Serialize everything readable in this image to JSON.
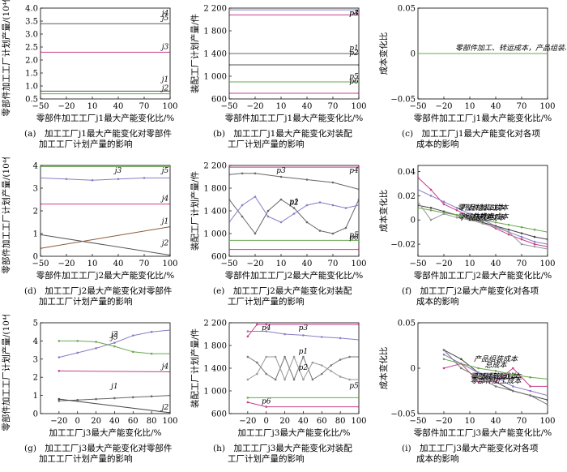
{
  "panels": [
    {
      "id": "a",
      "type": "line",
      "xlabel": "零部件加工工厂j1最大产能变化比/%",
      "ylabel": "零部件加工工厂计划产量/(10⁴件)",
      "x_ticks": [
        -50,
        -20,
        10,
        40,
        70,
        100
      ],
      "y_ticks": [
        "0.5",
        "1.0",
        "1.5",
        "2.0",
        "2.5",
        "3.0",
        "3.5",
        "4.0"
      ],
      "xlim": [
        -50,
        100
      ],
      "ylim": [
        0.5,
        4.0
      ],
      "caption": [
        "(a)　加工工厂j1最大产能变化对零部件",
        "加工工厂计划产量的影响"
      ],
      "series": [
        {
          "name": "j5",
          "color": "#8a7cc4",
          "x": [
            -50,
            100
          ],
          "y": [
            3.4,
            3.4
          ]
        },
        {
          "name": "j4",
          "color": "#777777",
          "x": [
            -50,
            100
          ],
          "y": [
            3.4,
            3.4
          ]
        },
        {
          "name": "j3",
          "color": "#c8408a",
          "x": [
            -50,
            100
          ],
          "y": [
            2.3,
            2.3
          ]
        },
        {
          "name": "j1",
          "color": "#555555",
          "x": [
            -50,
            100
          ],
          "y": [
            0.8,
            0.8
          ]
        },
        {
          "name": "j2",
          "color": "#6aa84f",
          "x": [
            -50,
            100
          ],
          "y": [
            0.7,
            0.7
          ]
        }
      ]
    },
    {
      "id": "b",
      "type": "line",
      "xlabel": "零部件加工工厂j1最大产能变化比/%",
      "ylabel": "装配工厂计划产量/件",
      "x_ticks": [
        -50,
        -20,
        10,
        40,
        70,
        100
      ],
      "y_ticks": [
        "600",
        "1 000",
        "1 400",
        "1 800",
        "2 200"
      ],
      "xlim": [
        -50,
        100
      ],
      "ylim": [
        600,
        2200
      ],
      "caption": [
        "(b)　加工工厂j1最大产能变化对装配",
        "工厂计划产量的影响"
      ],
      "series": [
        {
          "name": "p4",
          "color": "#8a7cc4",
          "x": [
            -50,
            100
          ],
          "y": [
            2170,
            2170
          ]
        },
        {
          "name": "p3",
          "color": "#c8408a",
          "x": [
            -50,
            100
          ],
          "y": [
            2080,
            2080
          ]
        },
        {
          "name": "p1",
          "color": "#666666",
          "x": [
            -50,
            100
          ],
          "y": [
            1400,
            1400
          ]
        },
        {
          "name": "p2",
          "color": "#555555",
          "x": [
            -50,
            100
          ],
          "y": [
            1200,
            1200
          ]
        },
        {
          "name": "p5",
          "color": "#6aa84f",
          "x": [
            -50,
            100
          ],
          "y": [
            900,
            900
          ]
        },
        {
          "name": "p6",
          "color": "#c8408a",
          "x": [
            -50,
            100
          ],
          "y": [
            700,
            700
          ]
        }
      ]
    },
    {
      "id": "c",
      "type": "line",
      "xlabel": "零部件加工工厂j1最大产能变化比/%",
      "ylabel": "成本变化比",
      "x_ticks": [
        -50,
        -20,
        10,
        40,
        70,
        100
      ],
      "y_ticks": [
        "−0.05",
        "0",
        "0.05"
      ],
      "xlim": [
        -50,
        100
      ],
      "ylim": [
        -0.05,
        0.05
      ],
      "caption": [
        "(c)　加工工厂j1最大产能变化对各项",
        "成本的影响"
      ],
      "series": [
        {
          "name": "零部件加工、转运成本，产品组装、配送成本、总成本",
          "color": "#6aa84f",
          "x": [
            -50,
            100
          ],
          "y": [
            0,
            0
          ]
        }
      ]
    },
    {
      "id": "d",
      "type": "line",
      "xlabel": "零部件加工工厂j2最大产能变化比/%",
      "ylabel": "零部件加工工厂计划产量/(10⁴件)",
      "x_ticks": [
        -50,
        -20,
        10,
        40,
        70,
        100
      ],
      "y_ticks": [
        "0",
        "1",
        "2",
        "3",
        "4"
      ],
      "xlim": [
        -50,
        100
      ],
      "ylim": [
        0,
        4
      ],
      "caption": [
        "(d)　加工工厂j2最大产能变化对零部件",
        "加工工厂计划产量的影响"
      ],
      "series": [
        {
          "name": "j5",
          "color": "#6aa84f",
          "x": [
            -50,
            100
          ],
          "y": [
            3.95,
            3.95
          ]
        },
        {
          "name": "j3",
          "color": "#8a7cc4",
          "x": [
            -50,
            -20,
            10,
            40,
            70,
            100
          ],
          "y": [
            3.45,
            3.4,
            3.35,
            3.4,
            3.45,
            3.45
          ]
        },
        {
          "name": "j4",
          "color": "#c8408a",
          "x": [
            -50,
            100
          ],
          "y": [
            2.3,
            2.3
          ]
        },
        {
          "name": "j2",
          "color": "#555555",
          "x": [
            -50,
            100
          ],
          "y": [
            0.95,
            0.05
          ]
        },
        {
          "name": "j1",
          "color": "#8a5a3a",
          "x": [
            -50,
            100
          ],
          "y": [
            0.35,
            1.3
          ]
        }
      ]
    },
    {
      "id": "e",
      "type": "line",
      "xlabel": "零部件加工工厂j2最大产能变化比/%",
      "ylabel": "装配工厂计划产量/件",
      "x_ticks": [
        -50,
        -20,
        10,
        40,
        70,
        100
      ],
      "y_ticks": [
        "600",
        "1 000",
        "1 400",
        "1 800",
        "2 200"
      ],
      "xlim": [
        -50,
        100
      ],
      "ylim": [
        600,
        2200
      ],
      "caption": [
        "(e)　加工工厂j2最大产能变化对装配",
        "工厂计划产量的影响"
      ],
      "series": [
        {
          "name": "p4",
          "color": "#c8408a",
          "x": [
            -50,
            100
          ],
          "y": [
            2170,
            2170
          ]
        },
        {
          "name": "p3",
          "color": "#666666",
          "x": [
            -50,
            -35,
            -20,
            10,
            40,
            70,
            100
          ],
          "y": [
            2040,
            2060,
            2060,
            2000,
            1950,
            1900,
            1780
          ]
        },
        {
          "name": "p2",
          "color": "#666666",
          "x": [
            -50,
            -35,
            -20,
            -5,
            10,
            25,
            40,
            55,
            70,
            85,
            100
          ],
          "y": [
            1600,
            1300,
            1000,
            1400,
            1600,
            1450,
            1200,
            1050,
            1000,
            1100,
            1600
          ]
        },
        {
          "name": "p1",
          "color": "#8a7cc4",
          "x": [
            -50,
            -35,
            -20,
            -5,
            10,
            25,
            40,
            55,
            70,
            85,
            100
          ],
          "y": [
            1200,
            1500,
            1650,
            1300,
            1200,
            1350,
            1500,
            1550,
            1500,
            1450,
            1500
          ]
        },
        {
          "name": "p5",
          "color": "#6aa84f",
          "x": [
            -50,
            100
          ],
          "y": [
            880,
            880
          ]
        },
        {
          "name": "p6",
          "color": "#c8408a",
          "x": [
            -50,
            100
          ],
          "y": [
            720,
            720
          ]
        }
      ]
    },
    {
      "id": "f",
      "type": "line",
      "xlabel": "零部件加工工厂j2最大产能变化比/%",
      "ylabel": "成本变化比",
      "x_ticks": [
        -50,
        -20,
        10,
        40,
        70,
        100
      ],
      "y_ticks": [
        "−0.02",
        "0",
        "0.02",
        "0.04"
      ],
      "xlim": [
        -50,
        100
      ],
      "ylim": [
        -0.03,
        0.045
      ],
      "caption": [
        "(f)　加工工厂j2最大产能变化对各项",
        "成本的影响"
      ],
      "series": [
        {
          "name": "零部件转运成本",
          "color": "#c8408a",
          "x": [
            -50,
            -35,
            -20,
            -5,
            10,
            25,
            40,
            55,
            70,
            85,
            100
          ],
          "y": [
            0.035,
            0.025,
            0.013,
            0.008,
            0.003,
            -0.002,
            -0.007,
            -0.012,
            -0.016,
            -0.02,
            -0.022
          ]
        },
        {
          "name": "零部件加工成本",
          "color": "#8a7cc4",
          "x": [
            -50,
            -35,
            -20,
            -5,
            10,
            25,
            40,
            55,
            70,
            85,
            100
          ],
          "y": [
            0.025,
            0.02,
            0.015,
            0.01,
            0.005,
            0,
            -0.005,
            -0.01,
            -0.014,
            -0.018,
            -0.02
          ]
        },
        {
          "name": "总成本",
          "color": "#444444",
          "x": [
            -50,
            -35,
            -20,
            -5,
            10,
            25,
            40,
            55,
            70,
            85,
            100
          ],
          "y": [
            0.012,
            0.01,
            0.007,
            0.004,
            0.001,
            -0.002,
            -0.005,
            -0.008,
            -0.011,
            -0.014,
            -0.016
          ]
        },
        {
          "name": "产品组装成本",
          "color": "#6aa84f",
          "x": [
            -50,
            -35,
            -20,
            -5,
            10,
            25,
            40,
            55,
            70,
            85,
            100
          ],
          "y": [
            0.01,
            0.008,
            0.006,
            0.004,
            0.002,
            0,
            -0.002,
            -0.004,
            -0.006,
            -0.008,
            -0.01
          ]
        },
        {
          "name": "产品配送成本",
          "color": "#999999",
          "x": [
            -50,
            -35,
            -20,
            -5,
            10,
            25,
            40,
            55,
            70,
            85,
            100
          ],
          "y": [
            0.015,
            0.0,
            0.005,
            0.002,
            0.0,
            -0.003,
            -0.006,
            -0.01,
            -0.02,
            -0.022,
            -0.024
          ]
        }
      ]
    },
    {
      "id": "g",
      "type": "line",
      "xlabel": "加工工厂j3最大产能变化比/%",
      "ylabel": "零部件加工工厂计划产量/(10⁴件)",
      "x_ticks": [
        -20,
        0,
        20,
        40,
        60,
        80,
        100
      ],
      "y_ticks": [
        "0",
        "1",
        "2",
        "3",
        "4",
        "5"
      ],
      "xlim": [
        -40,
        100
      ],
      "ylim": [
        0,
        5
      ],
      "caption": [
        "(g)　加工工厂j3最大产能变化对零部件",
        "加工工厂计划产量的影响"
      ],
      "series": [
        {
          "name": "j5",
          "color": "#8a7cc4",
          "x": [
            -20,
            0,
            20,
            40,
            60,
            80,
            100
          ],
          "y": [
            3.1,
            3.35,
            3.6,
            3.9,
            4.3,
            4.5,
            4.6
          ]
        },
        {
          "name": "j3",
          "color": "#6aa84f",
          "x": [
            -20,
            0,
            20,
            40,
            60,
            80,
            100
          ],
          "y": [
            4.0,
            4.0,
            3.95,
            3.7,
            3.4,
            3.3,
            3.3
          ]
        },
        {
          "name": "j4",
          "color": "#c8408a",
          "x": [
            -20,
            100
          ],
          "y": [
            2.35,
            2.3
          ]
        },
        {
          "name": "j1",
          "color": "#666666",
          "x": [
            -20,
            0,
            20,
            40,
            60,
            80,
            100
          ],
          "y": [
            0.7,
            0.75,
            0.8,
            0.85,
            0.9,
            0.95,
            1.0
          ]
        },
        {
          "name": "j2",
          "color": "#444444",
          "x": [
            -20,
            100
          ],
          "y": [
            0.8,
            0.05
          ]
        }
      ]
    },
    {
      "id": "h",
      "type": "line",
      "xlabel": "加工工厂j3最大产能变化比/%",
      "ylabel": "装配工厂计划产量/件",
      "x_ticks": [
        -20,
        0,
        20,
        40,
        60,
        80,
        100
      ],
      "y_ticks": [
        "600",
        "1 000",
        "1 400",
        "1 800",
        "2 200"
      ],
      "xlim": [
        -40,
        100
      ],
      "ylim": [
        600,
        2200
      ],
      "caption": [
        "(h)　加工工厂j3最大产能变化对装配",
        "工厂计划产量的影响"
      ],
      "series": [
        {
          "name": "p4",
          "color": "#c8408a",
          "x": [
            -20,
            -10,
            0,
            100
          ],
          "y": [
            1960,
            2170,
            2170,
            2170
          ]
        },
        {
          "name": "p3",
          "color": "#8a7cc4",
          "x": [
            -20,
            0,
            20,
            40,
            60,
            80,
            100
          ],
          "y": [
            2050,
            2050,
            2000,
            1980,
            1950,
            1930,
            1900
          ]
        },
        {
          "name": "p1",
          "color": "#777777",
          "x": [
            -20,
            -10,
            0,
            10,
            20,
            30,
            40,
            50,
            60,
            70,
            80,
            90,
            100
          ],
          "y": [
            1600,
            1500,
            1300,
            1200,
            1600,
            1200,
            1600,
            1200,
            1300,
            1450,
            1550,
            1600,
            1600
          ]
        },
        {
          "name": "p2",
          "color": "#999999",
          "x": [
            -20,
            -10,
            0,
            10,
            20,
            30,
            40,
            50,
            60,
            70,
            80,
            90,
            100
          ],
          "y": [
            1200,
            1300,
            1600,
            1600,
            1200,
            1600,
            1200,
            1500,
            1450,
            1350,
            1250,
            1200,
            1200
          ]
        },
        {
          "name": "p6",
          "color": "#c8408a",
          "x": [
            -20,
            0,
            100
          ],
          "y": [
            800,
            720,
            720
          ]
        },
        {
          "name": "p5",
          "color": "#6aa84f",
          "x": [
            -20,
            100
          ],
          "y": [
            880,
            880
          ]
        }
      ]
    },
    {
      "id": "i",
      "type": "line",
      "xlabel": "零部件加工工厂j3最大产能变化比/%",
      "ylabel": "成本变化比",
      "x_ticks": [
        -50,
        -20,
        10,
        40,
        70,
        100
      ],
      "y_ticks": [
        "−0.05",
        "0",
        "0.05"
      ],
      "xlim": [
        -50,
        100
      ],
      "ylim": [
        -0.05,
        0.05
      ],
      "caption": [
        "(i)　加工工厂j3最大产能变化对各项",
        "成本的影响"
      ],
      "series": [
        {
          "name": "产品配送成本",
          "color": "#444444",
          "x": [
            -20,
            0,
            20,
            40,
            60,
            80,
            100
          ],
          "y": [
            0.02,
            0.01,
            -0.005,
            -0.015,
            -0.025,
            -0.03,
            -0.035
          ]
        },
        {
          "name": "总成本",
          "color": "#8a7cc4",
          "x": [
            -20,
            0,
            20,
            40,
            60,
            80,
            100
          ],
          "y": [
            0.015,
            0.005,
            -0.005,
            -0.01,
            -0.02,
            -0.025,
            -0.03
          ]
        },
        {
          "name": "零部件转运成本",
          "color": "#c8408a",
          "x": [
            -20,
            0,
            20,
            40,
            60,
            80,
            100
          ],
          "y": [
            0.0,
            0.005,
            -0.015,
            -0.015,
            0.0,
            -0.02,
            -0.02
          ]
        },
        {
          "name": "产品组装成本",
          "color": "#6aa84f",
          "x": [
            -20,
            0,
            20,
            40,
            60,
            80,
            100
          ],
          "y": [
            0.01,
            0.005,
            0.0,
            -0.003,
            -0.007,
            -0.01,
            -0.012
          ]
        },
        {
          "name": "零部件加工成本",
          "color": "#777777",
          "x": [
            -20,
            0,
            20,
            40,
            60,
            80,
            100
          ],
          "y": [
            0.02,
            0.0,
            -0.01,
            -0.02,
            -0.025,
            -0.03,
            -0.04
          ]
        }
      ]
    }
  ]
}
